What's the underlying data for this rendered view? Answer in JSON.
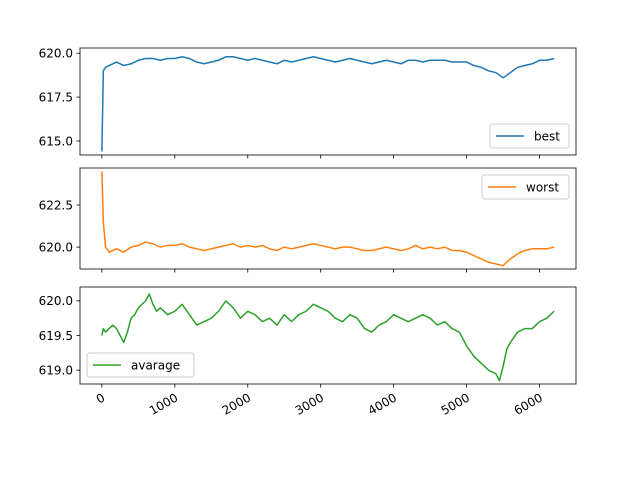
{
  "chart_data": [
    {
      "type": "line",
      "series": [
        {
          "name": "best",
          "color": "#1f77b4",
          "x": [
            0,
            20,
            50,
            100,
            150,
            200,
            300,
            400,
            500,
            600,
            700,
            800,
            900,
            1000,
            1100,
            1200,
            1300,
            1400,
            1500,
            1600,
            1700,
            1800,
            1900,
            2000,
            2100,
            2200,
            2300,
            2400,
            2500,
            2600,
            2700,
            2800,
            2900,
            3000,
            3100,
            3200,
            3300,
            3400,
            3500,
            3600,
            3700,
            3800,
            3900,
            4000,
            4100,
            4200,
            4300,
            4400,
            4500,
            4600,
            4700,
            4800,
            4900,
            5000,
            5100,
            5200,
            5300,
            5400,
            5500,
            5600,
            5700,
            5800,
            5900,
            6000,
            6100,
            6200
          ],
          "values": [
            614.4,
            619.0,
            619.2,
            619.3,
            619.4,
            619.5,
            619.3,
            619.4,
            619.6,
            619.7,
            619.7,
            619.6,
            619.7,
            619.7,
            619.8,
            619.7,
            619.5,
            619.4,
            619.5,
            619.6,
            619.8,
            619.8,
            619.7,
            619.6,
            619.7,
            619.6,
            619.5,
            619.4,
            619.6,
            619.5,
            619.6,
            619.7,
            619.8,
            619.7,
            619.6,
            619.5,
            619.6,
            619.7,
            619.6,
            619.5,
            619.4,
            619.5,
            619.6,
            619.5,
            619.4,
            619.6,
            619.6,
            619.5,
            619.6,
            619.6,
            619.6,
            619.5,
            619.5,
            619.5,
            619.3,
            619.2,
            619.0,
            618.9,
            618.6,
            618.9,
            619.2,
            619.3,
            619.4,
            619.6,
            619.6,
            619.7
          ]
        }
      ],
      "xlim": [
        -300,
        6500
      ],
      "ylim": [
        614.2,
        620.3
      ],
      "yticks": [
        615.0,
        617.5,
        620.0
      ],
      "ytick_labels": [
        "615.0",
        "617.5",
        "620.0"
      ],
      "legend": "lower right"
    },
    {
      "type": "line",
      "series": [
        {
          "name": "worst",
          "color": "#ff7f0e",
          "x": [
            0,
            20,
            50,
            100,
            150,
            200,
            300,
            400,
            500,
            600,
            700,
            800,
            900,
            1000,
            1100,
            1200,
            1300,
            1400,
            1500,
            1600,
            1700,
            1800,
            1900,
            2000,
            2100,
            2200,
            2300,
            2400,
            2500,
            2600,
            2700,
            2800,
            2900,
            3000,
            3100,
            3200,
            3300,
            3400,
            3500,
            3600,
            3700,
            3800,
            3900,
            4000,
            4100,
            4200,
            4300,
            4400,
            4500,
            4600,
            4700,
            4800,
            4900,
            5000,
            5100,
            5200,
            5300,
            5400,
            5500,
            5600,
            5700,
            5800,
            5900,
            6000,
            6100,
            6200
          ],
          "values": [
            624.5,
            621.5,
            620.0,
            619.7,
            619.8,
            619.9,
            619.7,
            620.0,
            620.1,
            620.3,
            620.2,
            620.0,
            620.1,
            620.1,
            620.2,
            620.0,
            619.9,
            619.8,
            619.9,
            620.0,
            620.1,
            620.2,
            620.0,
            620.1,
            620.0,
            620.1,
            619.9,
            619.8,
            620.0,
            619.9,
            620.0,
            620.1,
            620.2,
            620.1,
            620.0,
            619.9,
            620.0,
            620.0,
            619.9,
            619.8,
            619.8,
            619.9,
            620.0,
            619.9,
            619.8,
            619.9,
            620.1,
            619.9,
            620.0,
            619.9,
            620.0,
            619.8,
            619.8,
            619.7,
            619.5,
            619.3,
            619.1,
            619.0,
            618.9,
            619.3,
            619.6,
            619.8,
            619.9,
            619.9,
            619.9,
            620.0
          ]
        }
      ],
      "xlim": [
        -300,
        6500
      ],
      "ylim": [
        618.7,
        624.7
      ],
      "yticks": [
        620.0,
        622.5
      ],
      "ytick_labels": [
        "620.0",
        "622.5"
      ],
      "legend": "upper right"
    },
    {
      "type": "line",
      "series": [
        {
          "name": "avarage",
          "color": "#2ca02c",
          "x": [
            0,
            20,
            50,
            100,
            150,
            200,
            250,
            300,
            350,
            400,
            450,
            500,
            550,
            600,
            650,
            700,
            750,
            800,
            900,
            1000,
            1100,
            1200,
            1300,
            1400,
            1500,
            1600,
            1700,
            1800,
            1900,
            2000,
            2100,
            2200,
            2300,
            2400,
            2500,
            2600,
            2700,
            2800,
            2900,
            3000,
            3100,
            3200,
            3300,
            3400,
            3500,
            3600,
            3700,
            3800,
            3900,
            4000,
            4100,
            4200,
            4300,
            4400,
            4500,
            4600,
            4700,
            4800,
            4900,
            5000,
            5100,
            5200,
            5300,
            5400,
            5450,
            5500,
            5550,
            5600,
            5700,
            5800,
            5900,
            6000,
            6100,
            6200
          ],
          "values": [
            619.5,
            619.6,
            619.55,
            619.6,
            619.65,
            619.6,
            619.5,
            619.4,
            619.55,
            619.75,
            619.8,
            619.9,
            619.95,
            620.0,
            620.1,
            619.95,
            619.85,
            619.9,
            619.8,
            619.85,
            619.95,
            619.8,
            619.65,
            619.7,
            619.75,
            619.85,
            620.0,
            619.9,
            619.75,
            619.85,
            619.8,
            619.7,
            619.75,
            619.65,
            619.8,
            619.7,
            619.8,
            619.85,
            619.95,
            619.9,
            619.85,
            619.75,
            619.7,
            619.8,
            619.75,
            619.6,
            619.55,
            619.65,
            619.7,
            619.8,
            619.75,
            619.7,
            619.75,
            619.8,
            619.75,
            619.65,
            619.7,
            619.6,
            619.55,
            619.35,
            619.2,
            619.1,
            619.0,
            618.95,
            618.85,
            619.05,
            619.3,
            619.4,
            619.55,
            619.6,
            619.6,
            619.7,
            619.75,
            619.85
          ]
        }
      ],
      "xlim": [
        -300,
        6500
      ],
      "ylim": [
        618.8,
        620.2
      ],
      "yticks": [
        619.0,
        619.5,
        620.0
      ],
      "ytick_labels": [
        "619.0",
        "619.5",
        "620.0"
      ],
      "legend": "lower left"
    }
  ],
  "shared_x": {
    "xticks": [
      0,
      1000,
      2000,
      3000,
      4000,
      5000,
      6000
    ],
    "xtick_labels": [
      "0",
      "1000",
      "2000",
      "3000",
      "4000",
      "5000",
      "6000"
    ],
    "sharex": true
  }
}
